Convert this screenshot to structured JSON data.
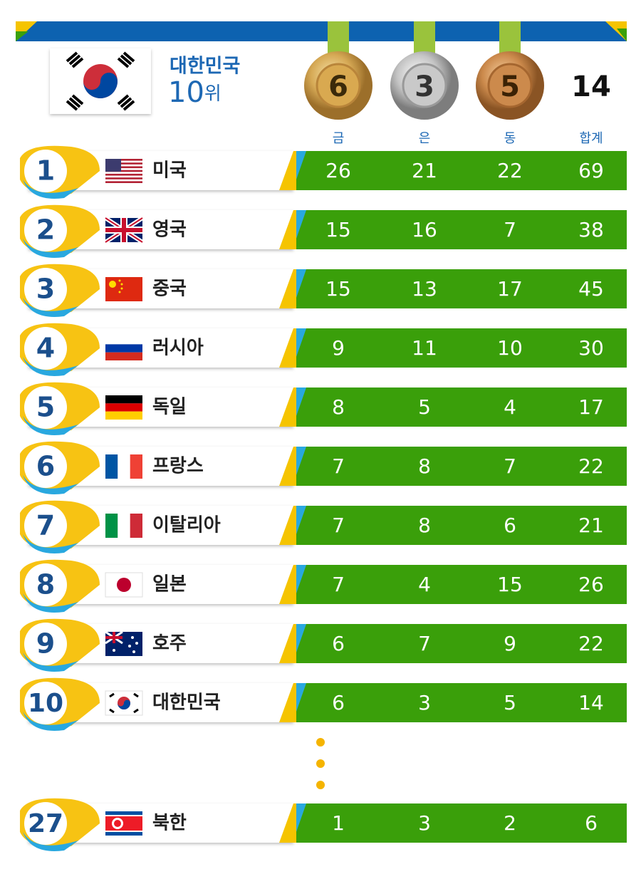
{
  "header": {
    "country": "대한민국",
    "rank": "10",
    "rank_suffix": "위",
    "medals": {
      "gold": "6",
      "silver": "3",
      "bronze": "5",
      "total": "14"
    }
  },
  "columns": [
    "금",
    "은",
    "동",
    "합계"
  ],
  "table": {
    "rows": [
      [
        "1",
        "미국",
        "26",
        "21",
        "22",
        "69"
      ],
      [
        "2",
        "영국",
        "15",
        "16",
        "7",
        "38"
      ],
      [
        "3",
        "중국",
        "15",
        "13",
        "17",
        "45"
      ],
      [
        "4",
        "러시아",
        "9",
        "11",
        "10",
        "30"
      ],
      [
        "5",
        "독일",
        "8",
        "5",
        "4",
        "17"
      ],
      [
        "6",
        "프랑스",
        "7",
        "8",
        "7",
        "22"
      ],
      [
        "7",
        "이탈리아",
        "7",
        "8",
        "6",
        "21"
      ],
      [
        "8",
        "일본",
        "7",
        "4",
        "15",
        "26"
      ],
      [
        "9",
        "호주",
        "6",
        "7",
        "9",
        "22"
      ],
      [
        "10",
        "대한민국",
        "6",
        "3",
        "5",
        "14"
      ],
      [
        "27",
        "북한",
        "1",
        "3",
        "2",
        "6"
      ]
    ]
  }
}
